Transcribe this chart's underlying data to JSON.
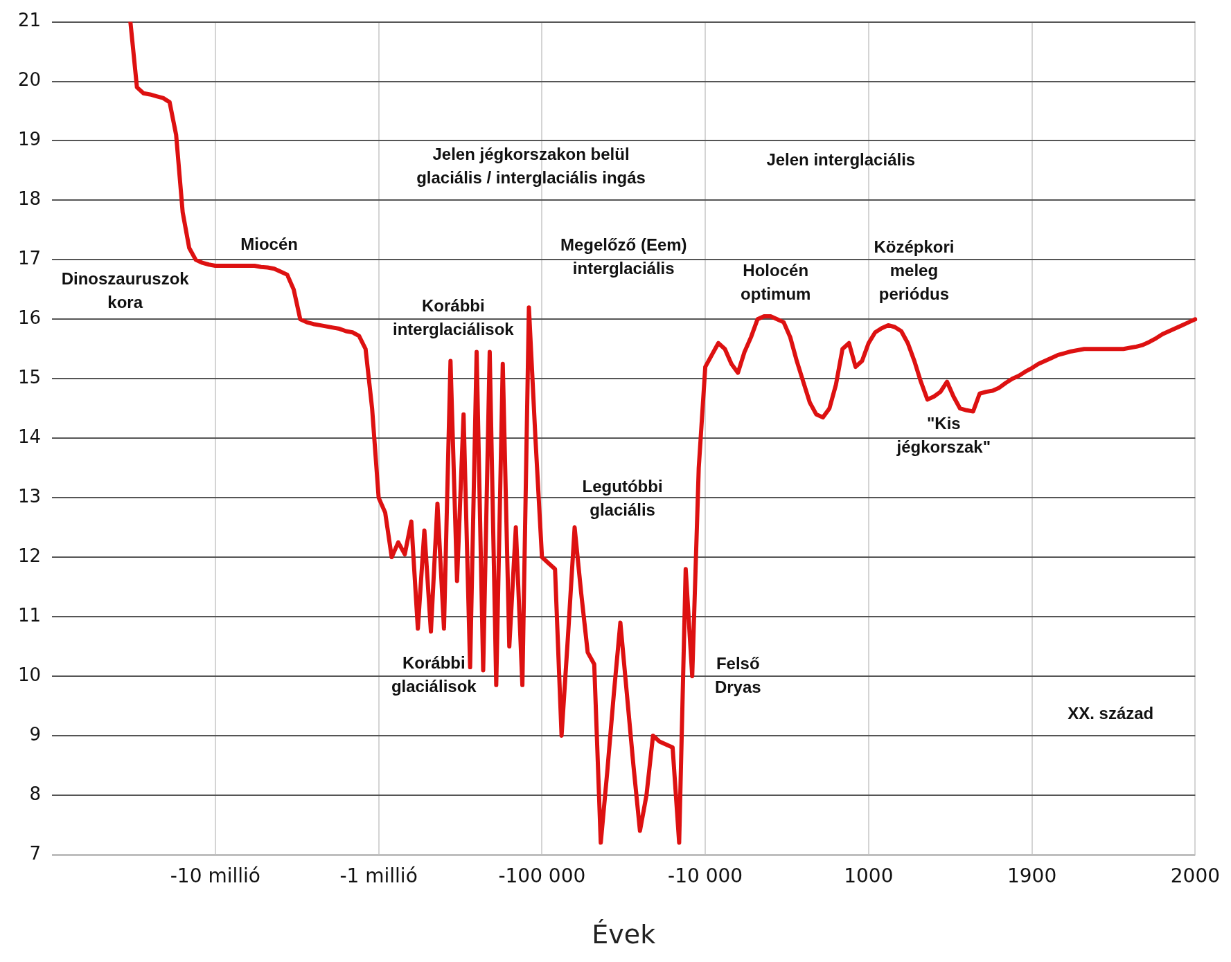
{
  "chart_data": {
    "type": "line",
    "xlabel": "Évek",
    "color": "#dd1111",
    "categories": [
      null,
      null,
      null,
      null,
      null,
      null,
      null,
      null,
      null,
      null,
      null,
      null,
      null,
      null,
      null,
      null,
      null,
      null,
      null,
      null,
      null,
      null,
      null,
      null,
      null,
      "-10 millió",
      null,
      null,
      null,
      null,
      null,
      null,
      null,
      null,
      null,
      null,
      null,
      null,
      null,
      null,
      null,
      null,
      null,
      null,
      null,
      null,
      null,
      null,
      null,
      null,
      "-1 millió",
      null,
      null,
      null,
      null,
      null,
      null,
      null,
      null,
      null,
      null,
      null,
      null,
      null,
      null,
      null,
      null,
      null,
      null,
      null,
      null,
      null,
      null,
      null,
      null,
      "-100 000",
      null,
      null,
      null,
      null,
      null,
      null,
      null,
      null,
      null,
      null,
      null,
      null,
      null,
      null,
      null,
      null,
      null,
      null,
      null,
      null,
      null,
      null,
      null,
      null,
      "-10 000",
      null,
      null,
      null,
      null,
      null,
      null,
      null,
      null,
      null,
      null,
      null,
      null,
      null,
      null,
      null,
      null,
      null,
      null,
      null,
      null,
      null,
      null,
      null,
      null,
      "1000",
      null,
      null,
      null,
      null,
      null,
      null,
      null,
      null,
      null,
      null,
      null,
      null,
      null,
      null,
      null,
      null,
      null,
      null,
      null,
      null,
      null,
      null,
      null,
      null,
      "1900",
      null,
      null,
      null,
      null,
      null,
      null,
      null,
      null,
      null,
      null,
      null,
      null,
      null,
      null,
      null,
      null,
      null,
      null,
      null,
      null,
      null,
      null,
      null,
      null,
      "2000"
    ],
    "values": [
      null,
      null,
      null,
      null,
      null,
      null,
      null,
      null,
      null,
      null,
      null,
      null,
      21,
      19.9,
      19.8,
      19.78,
      19.75,
      19.72,
      19.65,
      19.1,
      17.8,
      17.2,
      17.0,
      16.95,
      16.92,
      16.9,
      16.9,
      16.9,
      16.9,
      16.9,
      16.9,
      16.9,
      16.88,
      16.87,
      16.85,
      16.8,
      16.75,
      16.5,
      16.0,
      15.95,
      15.92,
      15.9,
      15.88,
      15.86,
      15.84,
      15.8,
      15.78,
      15.72,
      15.5,
      14.5,
      13.0,
      12.75,
      12.0,
      12.25,
      12.05,
      12.6,
      10.8,
      12.45,
      10.75,
      12.9,
      10.8,
      15.3,
      11.6,
      14.4,
      10.15,
      15.45,
      10.1,
      15.45,
      9.85,
      15.25,
      10.5,
      12.5,
      9.85,
      16.2,
      14.0,
      12.0,
      11.9,
      11.8,
      9.0,
      10.7,
      12.5,
      11.4,
      10.4,
      10.2,
      7.2,
      8.4,
      9.7,
      10.9,
      9.7,
      8.5,
      7.4,
      8.0,
      9.0,
      8.9,
      8.85,
      8.8,
      7.2,
      11.8,
      10.0,
      13.5,
      15.2,
      15.4,
      15.6,
      15.5,
      15.25,
      15.1,
      15.45,
      15.7,
      16.0,
      16.05,
      16.05,
      16.0,
      15.95,
      15.7,
      15.3,
      14.95,
      14.6,
      14.4,
      14.35,
      14.5,
      14.9,
      15.5,
      15.6,
      15.2,
      15.3,
      15.6,
      15.78,
      15.85,
      15.9,
      15.87,
      15.8,
      15.6,
      15.3,
      14.95,
      14.65,
      14.7,
      14.78,
      14.95,
      14.7,
      14.5,
      14.47,
      14.45,
      14.75,
      14.78,
      14.8,
      14.85,
      14.93,
      15.0,
      15.05,
      15.12,
      15.18,
      15.25,
      15.3,
      15.35,
      15.4,
      15.43,
      15.46,
      15.48,
      15.5,
      15.5,
      15.5,
      15.5,
      15.5,
      15.5,
      15.5,
      15.52,
      15.54,
      15.57,
      15.62,
      15.68,
      15.75,
      15.8,
      15.85,
      15.9,
      15.95,
      16.0
    ],
    "ylim": [
      7,
      21
    ],
    "yticks": [
      7,
      8,
      9,
      10,
      11,
      12,
      13,
      14,
      15,
      16,
      17,
      18,
      19,
      20,
      21
    ],
    "grid": true,
    "legend": false,
    "marker": "none",
    "line_style": "solid",
    "annotations": [
      "Jelen jégkorszakon belül\nglaciális / interglaciális ingás",
      "Jelen interglaciális",
      "Miocén",
      "Dinoszauruszok\nkora",
      "Megelőző (Eem)\ninterglaciális",
      "Korábbi\ninterglaciálisok",
      "Holocén\noptimum",
      "Középkori\nmeleg\nperiódus",
      "\"Kis\njégkorszak\"",
      "Legutóbbi\nglaciális",
      "Korábbi\nglaciálisok",
      "Felső\nDryas",
      "XX. század"
    ]
  }
}
